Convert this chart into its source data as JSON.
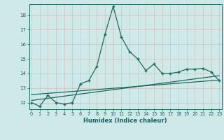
{
  "xlabel": "Humidex (Indice chaleur)",
  "bg_color": "#cfe8e8",
  "grid_color": "#b0cccc",
  "line_color": "#1a6b5a",
  "main_x": [
    0,
    1,
    2,
    3,
    4,
    5,
    6,
    7,
    8,
    9,
    10,
    11,
    12,
    13,
    14,
    15,
    16,
    17,
    18,
    19,
    20,
    21,
    22,
    23
  ],
  "main_y": [
    12.0,
    11.75,
    12.5,
    12.0,
    11.9,
    12.0,
    13.3,
    13.5,
    14.5,
    16.7,
    18.6,
    16.5,
    15.5,
    15.0,
    14.2,
    14.65,
    14.0,
    14.0,
    14.1,
    14.3,
    14.3,
    14.35,
    14.1,
    13.5
  ],
  "trend1_x": [
    0,
    23
  ],
  "trend1_y": [
    12.55,
    13.55
  ],
  "trend2_x": [
    0,
    23
  ],
  "trend2_y": [
    12.15,
    13.85
  ],
  "xlim": [
    -0.3,
    23.3
  ],
  "ylim": [
    11.55,
    18.75
  ],
  "yticks": [
    12,
    13,
    14,
    15,
    16,
    17,
    18
  ],
  "xticks": [
    0,
    1,
    2,
    3,
    4,
    5,
    6,
    7,
    8,
    9,
    10,
    11,
    12,
    13,
    14,
    15,
    16,
    17,
    18,
    19,
    20,
    21,
    22,
    23
  ],
  "xlabel_fontsize": 6.0,
  "tick_fontsize": 4.8
}
